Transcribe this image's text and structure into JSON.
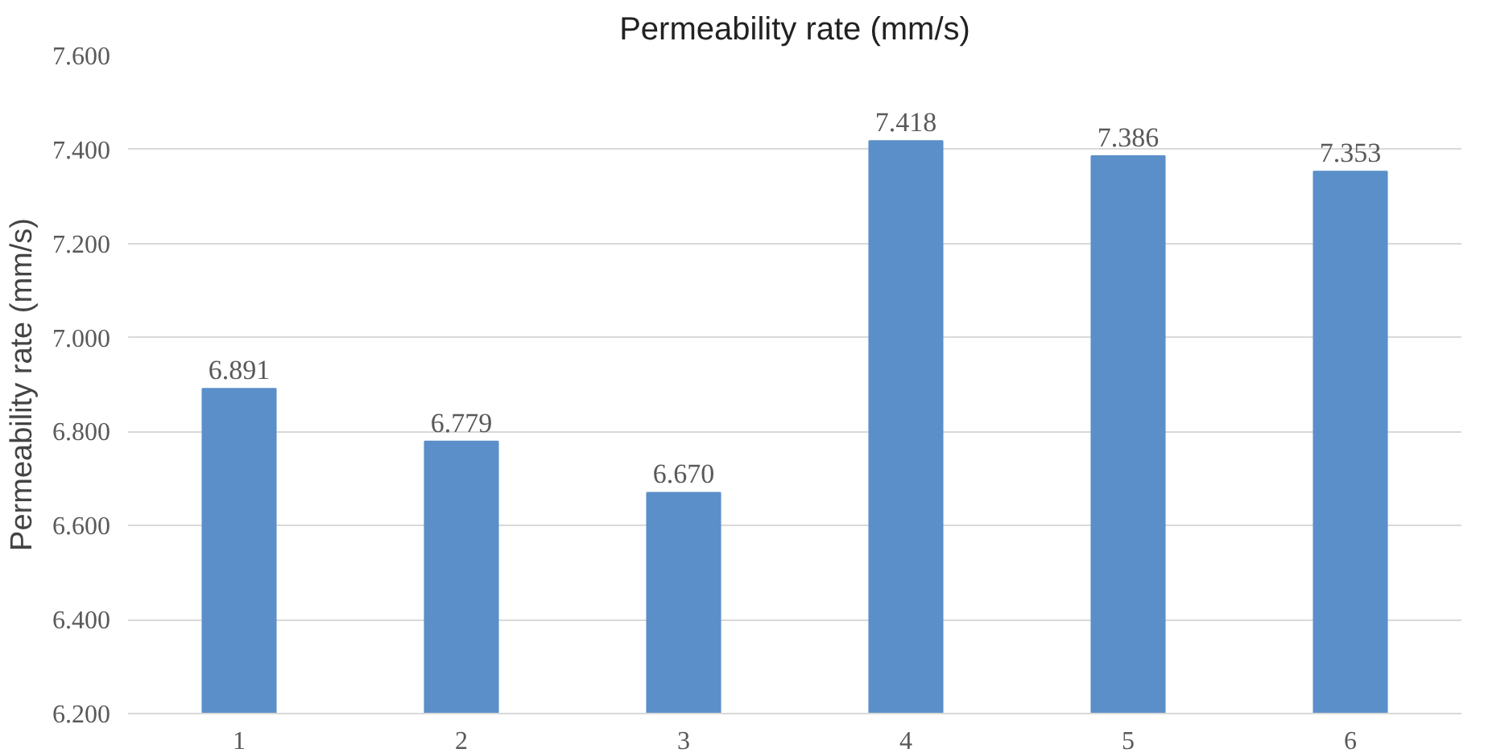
{
  "chart_data": {
    "type": "bar",
    "title": "Permeability rate (mm/s)",
    "ylabel": "Permeability rate (mm/s)",
    "categories": [
      "1",
      "2",
      "3",
      "4",
      "5",
      "6"
    ],
    "values": [
      6.891,
      6.779,
      6.67,
      7.418,
      7.386,
      7.353
    ],
    "color": "#5b8fc9",
    "ylim": [
      6.2,
      7.6
    ],
    "yticks": [
      {
        "value": 6.2,
        "label": "6.200"
      },
      {
        "value": 6.4,
        "label": "6.400"
      },
      {
        "value": 6.6,
        "label": "6.600"
      },
      {
        "value": 6.8,
        "label": "6.800"
      },
      {
        "value": 7.0,
        "label": "7.000"
      },
      {
        "value": 7.2,
        "label": "7.200"
      },
      {
        "value": 7.4,
        "label": "7.400"
      },
      {
        "value": 7.6,
        "label": "7.600"
      }
    ],
    "value_labels": [
      "6.891",
      "6.779",
      "6.670",
      "7.418",
      "7.386",
      "7.353"
    ],
    "grid": "y"
  }
}
